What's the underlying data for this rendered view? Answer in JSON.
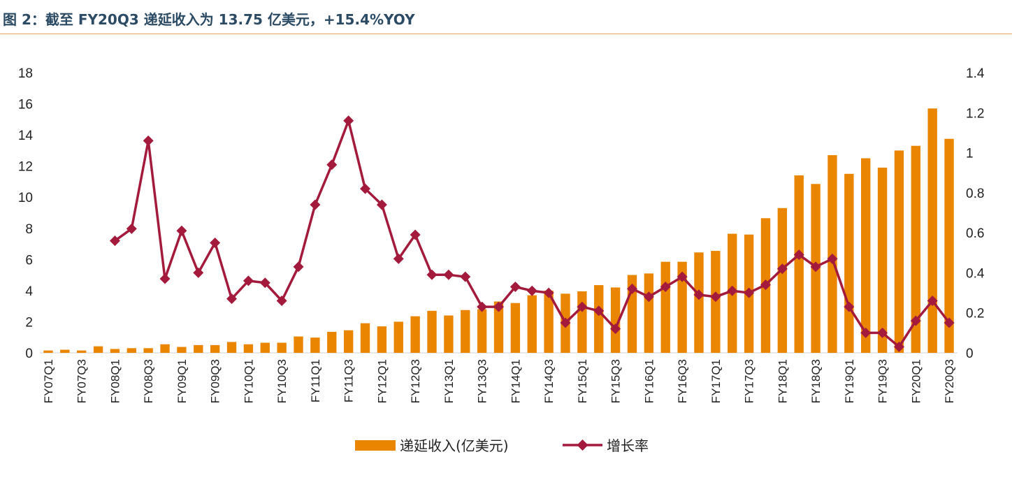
{
  "page": {
    "title": "图 2：截至 FY20Q3 递延收入为 13.75 亿美元，+15.4%YOY"
  },
  "colors": {
    "bar": "#ea8500",
    "line": "#a31a3c",
    "title": "#2b4a63",
    "rule": "#e8a35a"
  },
  "chart_data": {
    "type": "bar+line",
    "title": "图 2：截至 FY20Q3 递延收入为 13.75 亿美元，+15.4%YOY",
    "categories": [
      "FY07Q1",
      "FY07Q2",
      "FY07Q3",
      "FY07Q4",
      "FY08Q1",
      "FY08Q2",
      "FY08Q3",
      "FY08Q4",
      "FY09Q1",
      "FY09Q2",
      "FY09Q3",
      "FY09Q4",
      "FY10Q1",
      "FY10Q2",
      "FY10Q3",
      "FY10Q4",
      "FY11Q1",
      "FY11Q2",
      "FY11Q3",
      "FY11Q4",
      "FY12Q1",
      "FY12Q2",
      "FY12Q3",
      "FY12Q4",
      "FY13Q1",
      "FY13Q2",
      "FY13Q3",
      "FY13Q4",
      "FY14Q1",
      "FY14Q2",
      "FY14Q3",
      "FY14Q4",
      "FY15Q1",
      "FY15Q2",
      "FY15Q3",
      "FY15Q4",
      "FY16Q1",
      "FY16Q2",
      "FY16Q3",
      "FY16Q4",
      "FY17Q1",
      "FY17Q2",
      "FY17Q3",
      "FY17Q4",
      "FY18Q1",
      "FY18Q2",
      "FY18Q3",
      "FY18Q4",
      "FY19Q1",
      "FY19Q2",
      "FY19Q3",
      "FY19Q4",
      "FY20Q1",
      "FY20Q2",
      "FY20Q3"
    ],
    "xtick_labels": [
      "FY07Q1",
      "",
      "FY07Q3",
      "",
      "FY08Q1",
      "",
      "FY08Q3",
      "",
      "FY09Q1",
      "",
      "FY09Q3",
      "",
      "FY10Q1",
      "",
      "FY10Q3",
      "",
      "FY11Q1",
      "",
      "FY11Q3",
      "",
      "FY12Q1",
      "",
      "FY12Q3",
      "",
      "FY13Q1",
      "",
      "FY13Q3",
      "",
      "FY14Q1",
      "",
      "FY14Q3",
      "",
      "FY15Q1",
      "",
      "FY15Q3",
      "",
      "FY16Q1",
      "",
      "FY16Q3",
      "",
      "FY17Q1",
      "",
      "FY17Q3",
      "",
      "FY18Q1",
      "",
      "FY18Q3",
      "",
      "FY19Q1",
      "",
      "FY19Q3",
      "",
      "FY20Q1",
      "",
      "FY20Q3"
    ],
    "series": [
      {
        "name": "递延收入(亿美元)",
        "type": "bar",
        "axis": "left",
        "values": [
          0.15,
          0.2,
          0.15,
          0.42,
          0.25,
          0.3,
          0.3,
          0.55,
          0.38,
          0.5,
          0.5,
          0.7,
          0.55,
          0.65,
          0.65,
          1.05,
          0.98,
          1.35,
          1.45,
          1.9,
          1.7,
          2.0,
          2.35,
          2.7,
          2.4,
          2.75,
          2.8,
          3.3,
          3.2,
          3.7,
          4.0,
          3.8,
          3.95,
          4.35,
          4.2,
          5.0,
          5.1,
          5.85,
          5.85,
          6.45,
          6.55,
          7.65,
          7.6,
          8.65,
          9.3,
          11.4,
          10.85,
          12.7,
          11.5,
          12.5,
          11.9,
          13.0,
          13.3,
          15.7,
          13.75
        ]
      },
      {
        "name": "增长率",
        "type": "line",
        "axis": "right",
        "values": [
          null,
          null,
          null,
          null,
          0.56,
          0.62,
          1.06,
          0.37,
          0.61,
          0.4,
          0.55,
          0.27,
          0.36,
          0.35,
          0.26,
          0.43,
          0.74,
          0.94,
          1.16,
          0.82,
          0.74,
          0.47,
          0.59,
          0.39,
          0.39,
          0.38,
          0.23,
          0.23,
          0.33,
          0.31,
          0.3,
          0.15,
          0.23,
          0.21,
          0.12,
          0.32,
          0.28,
          0.33,
          0.38,
          0.29,
          0.28,
          0.31,
          0.3,
          0.34,
          0.42,
          0.49,
          0.43,
          0.47,
          0.23,
          0.1,
          0.1,
          0.03,
          0.16,
          0.26,
          0.15
        ]
      }
    ],
    "left_axis": {
      "ylim": [
        0,
        18
      ],
      "ticks": [
        "0",
        "2",
        "4",
        "6",
        "8",
        "10",
        "12",
        "14",
        "16",
        "18"
      ]
    },
    "right_axis": {
      "ylim": [
        0,
        1.4
      ],
      "ticks": [
        "0",
        "0.2",
        "0.4",
        "0.6",
        "0.8",
        "1",
        "1.2",
        "1.4"
      ]
    },
    "legend": {
      "position": "bottom-center",
      "bar_label": "递延收入(亿美元)",
      "line_label": "增长率"
    },
    "grid": false
  }
}
